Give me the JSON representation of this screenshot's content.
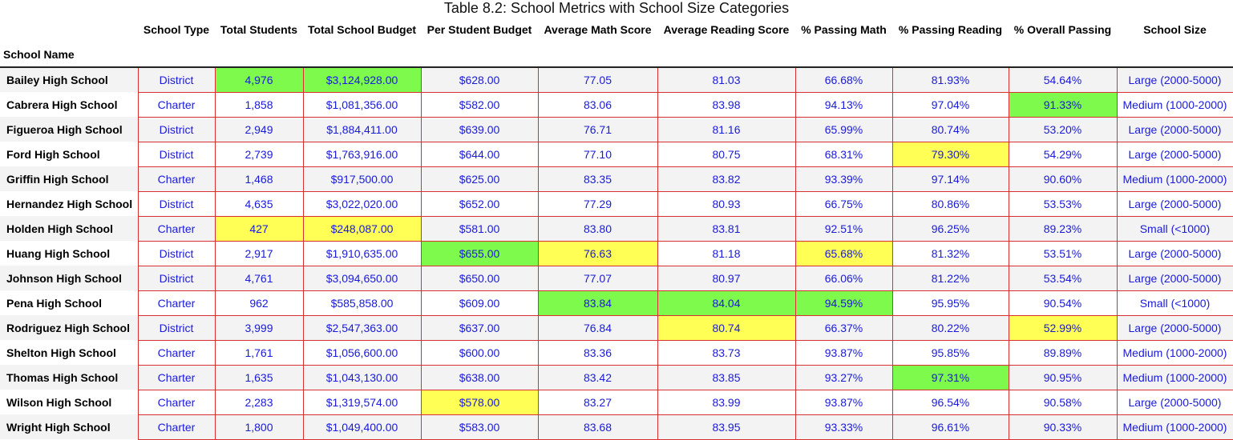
{
  "caption": "Table 8.2: School Metrics with School Size Categories",
  "index_label": "School Name",
  "columns": [
    "School Type",
    "Total Students",
    "Total School Budget",
    "Per Student Budget",
    "Average Math Score",
    "Average Reading Score",
    "% Passing Math",
    "% Passing Reading",
    "% Overall Passing",
    "School Size"
  ],
  "highlight_colors": {
    "green": "#7dfa4b",
    "yellow": "#ffff55",
    "cell_text": "#1a1adb",
    "cell_border": "#d83030"
  },
  "rows": [
    {
      "name": "Bailey High School",
      "cells": [
        {
          "v": "District"
        },
        {
          "v": "4,976",
          "hl": "green"
        },
        {
          "v": "$3,124,928.00",
          "hl": "green"
        },
        {
          "v": "$628.00"
        },
        {
          "v": "77.05"
        },
        {
          "v": "81.03"
        },
        {
          "v": "66.68%"
        },
        {
          "v": "81.93%"
        },
        {
          "v": "54.64%"
        },
        {
          "v": "Large (2000-5000)"
        }
      ]
    },
    {
      "name": "Cabrera High School",
      "cells": [
        {
          "v": "Charter"
        },
        {
          "v": "1,858"
        },
        {
          "v": "$1,081,356.00"
        },
        {
          "v": "$582.00"
        },
        {
          "v": "83.06"
        },
        {
          "v": "83.98"
        },
        {
          "v": "94.13%"
        },
        {
          "v": "97.04%"
        },
        {
          "v": "91.33%",
          "hl": "green"
        },
        {
          "v": "Medium (1000-2000)"
        }
      ]
    },
    {
      "name": "Figueroa High School",
      "cells": [
        {
          "v": "District"
        },
        {
          "v": "2,949"
        },
        {
          "v": "$1,884,411.00"
        },
        {
          "v": "$639.00"
        },
        {
          "v": "76.71"
        },
        {
          "v": "81.16"
        },
        {
          "v": "65.99%"
        },
        {
          "v": "80.74%"
        },
        {
          "v": "53.20%"
        },
        {
          "v": "Large (2000-5000)"
        }
      ]
    },
    {
      "name": "Ford High School",
      "cells": [
        {
          "v": "District"
        },
        {
          "v": "2,739"
        },
        {
          "v": "$1,763,916.00"
        },
        {
          "v": "$644.00"
        },
        {
          "v": "77.10"
        },
        {
          "v": "80.75"
        },
        {
          "v": "68.31%"
        },
        {
          "v": "79.30%",
          "hl": "yellow"
        },
        {
          "v": "54.29%"
        },
        {
          "v": "Large (2000-5000)"
        }
      ]
    },
    {
      "name": "Griffin High School",
      "cells": [
        {
          "v": "Charter"
        },
        {
          "v": "1,468"
        },
        {
          "v": "$917,500.00"
        },
        {
          "v": "$625.00"
        },
        {
          "v": "83.35"
        },
        {
          "v": "83.82"
        },
        {
          "v": "93.39%"
        },
        {
          "v": "97.14%"
        },
        {
          "v": "90.60%"
        },
        {
          "v": "Medium (1000-2000)"
        }
      ]
    },
    {
      "name": "Hernandez High School",
      "cells": [
        {
          "v": "District"
        },
        {
          "v": "4,635"
        },
        {
          "v": "$3,022,020.00"
        },
        {
          "v": "$652.00"
        },
        {
          "v": "77.29"
        },
        {
          "v": "80.93"
        },
        {
          "v": "66.75%"
        },
        {
          "v": "80.86%"
        },
        {
          "v": "53.53%"
        },
        {
          "v": "Large (2000-5000)"
        }
      ]
    },
    {
      "name": "Holden High School",
      "cells": [
        {
          "v": "Charter"
        },
        {
          "v": "427",
          "hl": "yellow"
        },
        {
          "v": "$248,087.00",
          "hl": "yellow"
        },
        {
          "v": "$581.00"
        },
        {
          "v": "83.80"
        },
        {
          "v": "83.81"
        },
        {
          "v": "92.51%"
        },
        {
          "v": "96.25%"
        },
        {
          "v": "89.23%"
        },
        {
          "v": "Small (<1000)"
        }
      ]
    },
    {
      "name": "Huang High School",
      "cells": [
        {
          "v": "District"
        },
        {
          "v": "2,917"
        },
        {
          "v": "$1,910,635.00"
        },
        {
          "v": "$655.00",
          "hl": "green"
        },
        {
          "v": "76.63",
          "hl": "yellow"
        },
        {
          "v": "81.18"
        },
        {
          "v": "65.68%",
          "hl": "yellow"
        },
        {
          "v": "81.32%"
        },
        {
          "v": "53.51%"
        },
        {
          "v": "Large (2000-5000)"
        }
      ]
    },
    {
      "name": "Johnson High School",
      "cells": [
        {
          "v": "District"
        },
        {
          "v": "4,761"
        },
        {
          "v": "$3,094,650.00"
        },
        {
          "v": "$650.00"
        },
        {
          "v": "77.07"
        },
        {
          "v": "80.97"
        },
        {
          "v": "66.06%"
        },
        {
          "v": "81.22%"
        },
        {
          "v": "53.54%"
        },
        {
          "v": "Large (2000-5000)"
        }
      ]
    },
    {
      "name": "Pena High School",
      "cells": [
        {
          "v": "Charter"
        },
        {
          "v": "962"
        },
        {
          "v": "$585,858.00"
        },
        {
          "v": "$609.00"
        },
        {
          "v": "83.84",
          "hl": "green"
        },
        {
          "v": "84.04",
          "hl": "green"
        },
        {
          "v": "94.59%",
          "hl": "green"
        },
        {
          "v": "95.95%"
        },
        {
          "v": "90.54%"
        },
        {
          "v": "Small (<1000)"
        }
      ]
    },
    {
      "name": "Rodriguez High School",
      "cells": [
        {
          "v": "District"
        },
        {
          "v": "3,999"
        },
        {
          "v": "$2,547,363.00"
        },
        {
          "v": "$637.00"
        },
        {
          "v": "76.84"
        },
        {
          "v": "80.74",
          "hl": "yellow"
        },
        {
          "v": "66.37%"
        },
        {
          "v": "80.22%"
        },
        {
          "v": "52.99%",
          "hl": "yellow"
        },
        {
          "v": "Large (2000-5000)"
        }
      ]
    },
    {
      "name": "Shelton High School",
      "cells": [
        {
          "v": "Charter"
        },
        {
          "v": "1,761"
        },
        {
          "v": "$1,056,600.00"
        },
        {
          "v": "$600.00"
        },
        {
          "v": "83.36"
        },
        {
          "v": "83.73"
        },
        {
          "v": "93.87%"
        },
        {
          "v": "95.85%"
        },
        {
          "v": "89.89%"
        },
        {
          "v": "Medium (1000-2000)"
        }
      ]
    },
    {
      "name": "Thomas High School",
      "cells": [
        {
          "v": "Charter"
        },
        {
          "v": "1,635"
        },
        {
          "v": "$1,043,130.00"
        },
        {
          "v": "$638.00"
        },
        {
          "v": "83.42"
        },
        {
          "v": "83.85"
        },
        {
          "v": "93.27%"
        },
        {
          "v": "97.31%",
          "hl": "green"
        },
        {
          "v": "90.95%"
        },
        {
          "v": "Medium (1000-2000)"
        }
      ]
    },
    {
      "name": "Wilson High School",
      "cells": [
        {
          "v": "Charter"
        },
        {
          "v": "2,283"
        },
        {
          "v": "$1,319,574.00"
        },
        {
          "v": "$578.00",
          "hl": "yellow"
        },
        {
          "v": "83.27"
        },
        {
          "v": "83.99"
        },
        {
          "v": "93.87%"
        },
        {
          "v": "96.54%"
        },
        {
          "v": "90.58%"
        },
        {
          "v": "Large (2000-5000)"
        }
      ]
    },
    {
      "name": "Wright High School",
      "cells": [
        {
          "v": "Charter"
        },
        {
          "v": "1,800"
        },
        {
          "v": "$1,049,400.00"
        },
        {
          "v": "$583.00"
        },
        {
          "v": "83.68"
        },
        {
          "v": "83.95"
        },
        {
          "v": "93.33%"
        },
        {
          "v": "96.61%"
        },
        {
          "v": "90.33%"
        },
        {
          "v": "Medium (1000-2000)"
        }
      ]
    }
  ]
}
